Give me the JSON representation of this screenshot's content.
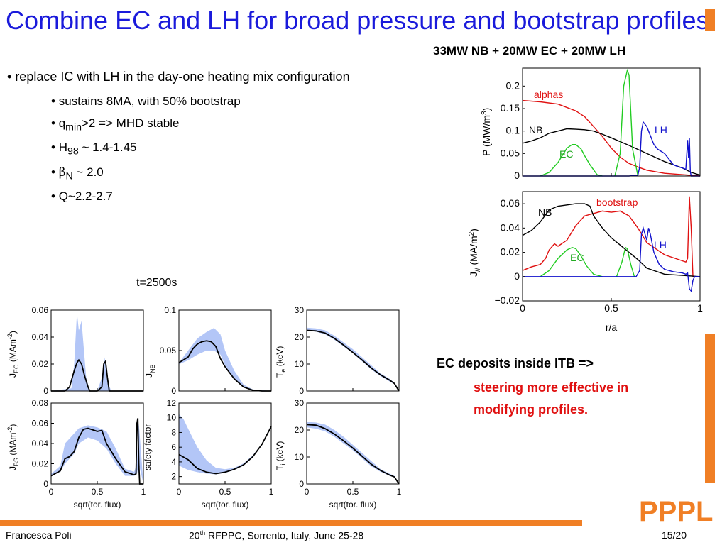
{
  "slide": {
    "title": "Combine EC and LH for broad pressure and bootstrap profiles",
    "subtitle": "33MW NB + 20MW EC + 20MW LH",
    "bullet_main": "replace IC with LH in the day-one heating mix configuration",
    "sub_bullets": {
      "sustains": "sustains  8MA, with 50% bootstrap",
      "q_prefix": "q",
      "q_sub": "min",
      "q_suffix": ">2 => MHD stable",
      "h_prefix": "H",
      "h_sub": "98",
      "h_suffix": " ~ 1.4-1.45",
      "beta_symbol": "β",
      "beta_sub": "N",
      "beta_suffix": " ~ 2.0",
      "q_gain": "Q~2.2-2.7"
    },
    "time_label": "t=2500s",
    "note_line1": "EC deposits inside ITB     =>",
    "note_line2": "steering more effective in",
    "note_line3": "modifying profiles.",
    "footer_left": "Francesca Poli",
    "footer_mid_prefix": "20",
    "footer_mid_sup": "th",
    "footer_mid_suffix": " RFPPC, Sorrento, Italy, June 25-28",
    "footer_right": "15/20",
    "logo_text": "PPPL",
    "colors": {
      "title": "#1a1adb",
      "accent": "#f07f25",
      "alphas": "#e01010",
      "nb": "#000000",
      "ec": "#22cc22",
      "lh": "#1111cc",
      "band": "#b3c6f7"
    }
  },
  "chart_data": [
    {
      "id": "power",
      "type": "line",
      "ylabel": "P (MW/m3)",
      "ylim": [
        0,
        0.24
      ],
      "yticks": [
        0,
        0.05,
        0.1,
        0.15,
        0.2
      ],
      "xlim": [
        0,
        1
      ],
      "series": [
        {
          "name": "alphas",
          "color": "#e01010",
          "x": [
            0,
            0.1,
            0.2,
            0.3,
            0.35,
            0.4,
            0.45,
            0.5,
            0.55,
            0.6,
            0.65,
            0.7,
            0.8,
            0.9,
            1.0
          ],
          "y": [
            0.168,
            0.165,
            0.16,
            0.145,
            0.132,
            0.11,
            0.088,
            0.062,
            0.042,
            0.028,
            0.02,
            0.013,
            0.006,
            0.003,
            0
          ]
        },
        {
          "name": "NB",
          "color": "#000000",
          "x": [
            0,
            0.05,
            0.1,
            0.15,
            0.2,
            0.25,
            0.3,
            0.35,
            0.4,
            0.45,
            0.5,
            0.6,
            0.7,
            0.8,
            0.9,
            0.95,
            1.0
          ],
          "y": [
            0.073,
            0.078,
            0.085,
            0.095,
            0.1,
            0.105,
            0.104,
            0.103,
            0.1,
            0.093,
            0.085,
            0.068,
            0.05,
            0.032,
            0.018,
            0.008,
            0.002
          ]
        },
        {
          "name": "EC",
          "color": "#22cc22",
          "x": [
            0.1,
            0.15,
            0.2,
            0.25,
            0.28,
            0.3,
            0.33,
            0.35,
            0.38,
            0.42,
            0.45
          ],
          "y": [
            0,
            0.008,
            0.03,
            0.062,
            0.07,
            0.07,
            0.06,
            0.045,
            0.025,
            0.003,
            0
          ]
        },
        {
          "name": "EC",
          "color": "#22cc22",
          "x": [
            0.52,
            0.55,
            0.57,
            0.59,
            0.6,
            0.62,
            0.65
          ],
          "y": [
            0,
            0.05,
            0.2,
            0.235,
            0.225,
            0.06,
            0
          ]
        },
        {
          "name": "LH",
          "color": "#1111cc",
          "x": [
            0,
            0.6,
            0.65,
            0.66,
            0.67,
            0.68,
            0.7,
            0.72,
            0.74,
            0.76,
            0.8,
            0.85,
            0.88,
            0.9,
            0.92,
            0.93,
            0.935,
            0.94,
            0.945,
            0.95,
            1.0
          ],
          "y": [
            0,
            0,
            0.002,
            0.02,
            0.1,
            0.12,
            0.11,
            0.09,
            0.07,
            0.06,
            0.05,
            0.025,
            0.02,
            0.018,
            0.015,
            0.08,
            0.04,
            0.085,
            0.01,
            0,
            0
          ]
        }
      ],
      "annotations": [
        "alphas",
        "NB",
        "EC",
        "LH"
      ]
    },
    {
      "id": "current",
      "type": "line",
      "ylabel": "J// (MA/m2)",
      "xlabel": "r/a",
      "xlim": [
        0,
        1
      ],
      "ylim": [
        -0.02,
        0.07
      ],
      "xticks": [
        0,
        0.5,
        1
      ],
      "yticks": [
        -0.02,
        0,
        0.02,
        0.04,
        0.06
      ],
      "series": [
        {
          "name": "bootstrap",
          "color": "#e01010",
          "x": [
            0,
            0.05,
            0.1,
            0.13,
            0.15,
            0.18,
            0.2,
            0.25,
            0.3,
            0.35,
            0.4,
            0.45,
            0.5,
            0.55,
            0.6,
            0.65,
            0.7,
            0.8,
            0.9,
            0.92,
            0.93,
            0.94,
            0.95,
            0.96,
            1.0
          ],
          "y": [
            0.005,
            0.008,
            0.01,
            0.015,
            0.022,
            0.027,
            0.025,
            0.03,
            0.042,
            0.05,
            0.052,
            0.054,
            0.053,
            0.054,
            0.05,
            0.04,
            0.028,
            0.018,
            0.013,
            0.012,
            0.015,
            0.066,
            0.04,
            0.0,
            0
          ]
        },
        {
          "name": "NB",
          "color": "#000000",
          "x": [
            0,
            0.05,
            0.1,
            0.15,
            0.2,
            0.25,
            0.3,
            0.35,
            0.38,
            0.4,
            0.45,
            0.5,
            0.55,
            0.6,
            0.65,
            0.7,
            0.8,
            0.9,
            1.0
          ],
          "y": [
            0.034,
            0.038,
            0.045,
            0.055,
            0.058,
            0.059,
            0.06,
            0.06,
            0.058,
            0.05,
            0.04,
            0.032,
            0.026,
            0.02,
            0.014,
            0.007,
            0.002,
            0.001,
            0
          ]
        },
        {
          "name": "EC",
          "color": "#22cc22",
          "x": [
            0.1,
            0.15,
            0.2,
            0.25,
            0.28,
            0.3,
            0.33,
            0.36,
            0.4,
            0.45
          ],
          "y": [
            0,
            0.005,
            0.015,
            0.022,
            0.024,
            0.023,
            0.017,
            0.009,
            0.002,
            0
          ]
        },
        {
          "name": "EC",
          "color": "#22cc22",
          "x": [
            0.53,
            0.56,
            0.58,
            0.59,
            0.61,
            0.63
          ],
          "y": [
            0,
            0.012,
            0.024,
            0.023,
            0.01,
            0
          ]
        },
        {
          "name": "LH",
          "color": "#1111cc",
          "x": [
            0,
            0.64,
            0.66,
            0.67,
            0.68,
            0.7,
            0.71,
            0.72,
            0.74,
            0.77,
            0.8,
            0.85,
            0.9,
            0.92,
            0.93,
            0.94,
            0.95,
            0.96,
            0.97,
            1.0
          ],
          "y": [
            0,
            0,
            0.005,
            0.035,
            0.04,
            0.03,
            0.04,
            0.035,
            0.02,
            0.01,
            0.006,
            0.004,
            0.003,
            0.002,
            0.003,
            -0.01,
            -0.012,
            -0.003,
            0,
            0
          ]
        }
      ],
      "annotations": [
        "bootstrap",
        "NB",
        "EC",
        "LH"
      ]
    },
    {
      "id": "j_ec",
      "type": "line",
      "ylabel": "J_EC (MAm^-2)",
      "xlim": [
        0,
        1
      ],
      "ylim": [
        0,
        0.06
      ],
      "yticks": [
        0,
        0.02,
        0.04,
        0.06
      ],
      "band": {
        "x": [
          0,
          0.22,
          0.25,
          0.28,
          0.3,
          0.33,
          0.35,
          0.38,
          0.42,
          0.5,
          0.55,
          0.58,
          0.6,
          0.65,
          1.0
        ],
        "y_low": [
          0,
          0,
          0,
          0,
          0,
          0,
          0,
          0,
          0,
          0,
          0,
          0,
          0,
          0,
          0
        ],
        "y_high": [
          0,
          0.002,
          0.02,
          0.058,
          0.045,
          0.052,
          0.035,
          0.01,
          0,
          0,
          0.01,
          0.025,
          0.01,
          0,
          0
        ]
      },
      "series": [
        {
          "name": "J_EC",
          "color": "#000000",
          "x": [
            0,
            0.15,
            0.2,
            0.25,
            0.28,
            0.3,
            0.33,
            0.36,
            0.4,
            0.42,
            0.5,
            0.55,
            0.57,
            0.59,
            0.61,
            0.63,
            1.0
          ],
          "y": [
            0,
            0,
            0.003,
            0.015,
            0.021,
            0.023,
            0.02,
            0.012,
            0.003,
            0,
            0,
            0.003,
            0.02,
            0.022,
            0.01,
            0,
            0
          ]
        }
      ]
    },
    {
      "id": "j_nb",
      "type": "line",
      "ylabel": "J_NB",
      "xlim": [
        0,
        1
      ],
      "ylim": [
        0,
        0.1
      ],
      "yticks": [
        0,
        0.05,
        0.1
      ],
      "band": {
        "x": [
          0,
          0.1,
          0.2,
          0.3,
          0.38,
          0.45,
          0.5,
          0.6,
          0.7,
          0.8,
          0.9,
          1.0
        ],
        "y_low": [
          0.033,
          0.038,
          0.045,
          0.05,
          0.05,
          0.045,
          0.032,
          0.015,
          0.004,
          0.001,
          0,
          0
        ],
        "y_high": [
          0.035,
          0.05,
          0.065,
          0.073,
          0.078,
          0.07,
          0.05,
          0.025,
          0.008,
          0.002,
          0.001,
          0
        ]
      },
      "series": [
        {
          "name": "J_NB",
          "color": "#000000",
          "x": [
            0,
            0.1,
            0.15,
            0.2,
            0.25,
            0.3,
            0.35,
            0.4,
            0.45,
            0.5,
            0.6,
            0.7,
            0.8,
            0.9,
            1.0
          ],
          "y": [
            0.035,
            0.042,
            0.052,
            0.058,
            0.061,
            0.062,
            0.061,
            0.055,
            0.04,
            0.03,
            0.015,
            0.005,
            0.001,
            0,
            0
          ]
        }
      ]
    },
    {
      "id": "te",
      "type": "line",
      "ylabel": "T_e (keV)",
      "xlim": [
        0,
        1
      ],
      "ylim": [
        0,
        30
      ],
      "yticks": [
        0,
        10,
        20,
        30
      ],
      "band": {
        "x": [
          0,
          0.1,
          0.2,
          0.3,
          0.4,
          0.5,
          0.6,
          0.7,
          0.8,
          0.9,
          0.95,
          1.0
        ],
        "y_low": [
          22.5,
          22,
          21,
          19,
          16.5,
          14,
          11,
          8,
          5.5,
          3.5,
          2.5,
          0
        ],
        "y_high": [
          23.5,
          23.2,
          22.5,
          20.5,
          18,
          15.5,
          12.5,
          9.5,
          6.5,
          4.5,
          3,
          0
        ]
      },
      "series": [
        {
          "name": "T_e",
          "color": "#000000",
          "x": [
            0,
            0.1,
            0.2,
            0.3,
            0.4,
            0.5,
            0.6,
            0.7,
            0.8,
            0.9,
            0.95,
            1.0
          ],
          "y": [
            22.5,
            22.3,
            21.5,
            19.5,
            17,
            14.3,
            11.5,
            8.5,
            6,
            4,
            2.8,
            0
          ]
        }
      ]
    },
    {
      "id": "j_bs",
      "type": "line",
      "ylabel": "J_BS (MAm^-2)",
      "xlim": [
        0,
        1
      ],
      "ylim": [
        0,
        0.08
      ],
      "yticks": [
        0,
        0.02,
        0.04,
        0.06,
        0.08
      ],
      "band": {
        "x": [
          0,
          0.1,
          0.15,
          0.2,
          0.25,
          0.3,
          0.4,
          0.5,
          0.6,
          0.7,
          0.8,
          0.9,
          0.93,
          0.95,
          1.0
        ],
        "y_low": [
          0.008,
          0.012,
          0.02,
          0.025,
          0.03,
          0.04,
          0.046,
          0.043,
          0.035,
          0.02,
          0.008,
          0.008,
          0.01,
          0.02,
          0
        ],
        "y_high": [
          0.01,
          0.018,
          0.04,
          0.045,
          0.05,
          0.055,
          0.058,
          0.056,
          0.052,
          0.035,
          0.015,
          0.012,
          0.02,
          0.06,
          0
        ]
      },
      "series": [
        {
          "name": "J_BS",
          "color": "#000000",
          "x": [
            0,
            0.1,
            0.15,
            0.2,
            0.25,
            0.3,
            0.35,
            0.4,
            0.5,
            0.55,
            0.6,
            0.7,
            0.8,
            0.9,
            0.92,
            0.93,
            0.94,
            0.95,
            0.96,
            1.0
          ],
          "y": [
            0.008,
            0.013,
            0.025,
            0.027,
            0.032,
            0.046,
            0.054,
            0.055,
            0.052,
            0.053,
            0.04,
            0.025,
            0.012,
            0.009,
            0.01,
            0.06,
            0.065,
            0.02,
            0,
            0
          ]
        }
      ]
    },
    {
      "id": "safety",
      "type": "line",
      "ylabel": "safety factor",
      "xlim": [
        0,
        1
      ],
      "ylim": [
        1,
        12
      ],
      "yticks": [
        2,
        4,
        6,
        8,
        10,
        12
      ],
      "band": {
        "x": [
          0,
          0.05,
          0.1,
          0.2,
          0.3,
          0.4,
          0.5,
          0.6,
          0.7,
          0.8,
          0.9,
          1.0
        ],
        "y_low": [
          3.5,
          3.2,
          2.9,
          2.6,
          2.4,
          2.3,
          2.5,
          2.9,
          3.5,
          4.6,
          6.3,
          8.8
        ],
        "y_high": [
          10.5,
          9.8,
          8.5,
          6,
          4.2,
          3.2,
          3,
          3.2,
          3.8,
          4.9,
          6.5,
          9
        ]
      },
      "series": [
        {
          "name": "q",
          "color": "#000000",
          "x": [
            0,
            0.1,
            0.2,
            0.3,
            0.4,
            0.5,
            0.6,
            0.7,
            0.8,
            0.9,
            1.0
          ],
          "y": [
            5,
            4.3,
            3.1,
            2.6,
            2.4,
            2.6,
            3,
            3.6,
            4.7,
            6.4,
            8.8
          ]
        }
      ]
    },
    {
      "id": "ti",
      "type": "line",
      "ylabel": "T_i (keV)",
      "xlim": [
        0,
        1
      ],
      "ylim": [
        0,
        30
      ],
      "yticks": [
        0,
        10,
        20,
        30
      ],
      "band": {
        "x": [
          0,
          0.1,
          0.2,
          0.3,
          0.4,
          0.5,
          0.6,
          0.7,
          0.8,
          0.9,
          0.95,
          1.0
        ],
        "y_low": [
          21,
          20.5,
          19.5,
          17.5,
          15,
          12.5,
          9.5,
          6.5,
          4.5,
          3,
          2.5,
          0
        ],
        "y_high": [
          23,
          22.8,
          22,
          20,
          17.5,
          14.5,
          11.5,
          8.5,
          5.5,
          3.8,
          3,
          0
        ]
      },
      "series": [
        {
          "name": "T_i",
          "color": "#000000",
          "x": [
            0,
            0.1,
            0.2,
            0.3,
            0.4,
            0.5,
            0.6,
            0.7,
            0.8,
            0.9,
            0.95,
            1.0
          ],
          "y": [
            22,
            21.8,
            20.5,
            18.5,
            16,
            13.3,
            10.3,
            7.3,
            5,
            3.3,
            2.6,
            0
          ]
        }
      ]
    }
  ],
  "small_axes": {
    "xticks": [
      0,
      0.5,
      1
    ],
    "xlabel": "sqrt(tor. flux)"
  }
}
